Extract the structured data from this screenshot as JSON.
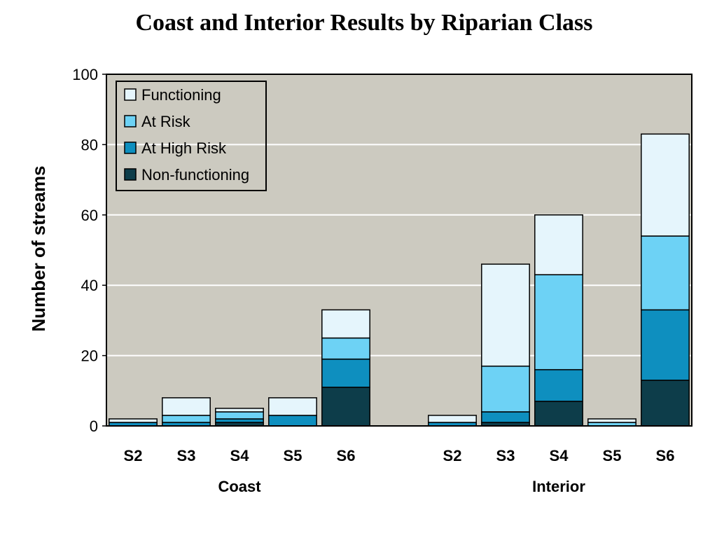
{
  "chart_data": {
    "type": "bar",
    "stacked": true,
    "title": "Coast and Interior Results by Riparian Class",
    "xlabel": "",
    "ylabel": "Number of streams",
    "ylim": [
      0,
      100
    ],
    "yticks": [
      0,
      20,
      40,
      60,
      80,
      100
    ],
    "grid": true,
    "legend_position": "top-left",
    "colors": {
      "plot_background": "#cccac0",
      "grid": "#ffffff"
    },
    "groups": [
      {
        "name": "Coast",
        "categories": [
          "S2",
          "S3",
          "S4",
          "S5",
          "S6"
        ]
      },
      {
        "name": "Interior",
        "categories": [
          "S2",
          "S3",
          "S4",
          "S5",
          "S6"
        ]
      }
    ],
    "series": [
      {
        "name": "Non-functioning",
        "color": "#0d3d4a",
        "values": [
          0,
          0,
          1,
          0,
          11,
          0,
          1,
          7,
          0,
          13
        ]
      },
      {
        "name": "At High Risk",
        "color": "#0e8fbf",
        "values": [
          1,
          1,
          1,
          3,
          8,
          1,
          3,
          9,
          0,
          20
        ]
      },
      {
        "name": "At Risk",
        "color": "#6dd2f5",
        "values": [
          0,
          2,
          2,
          0,
          6,
          0,
          13,
          27,
          1,
          21
        ]
      },
      {
        "name": "Functioning",
        "color": "#e5f5fc",
        "values": [
          1,
          5,
          1,
          5,
          8,
          2,
          29,
          17,
          1,
          29
        ]
      }
    ]
  }
}
